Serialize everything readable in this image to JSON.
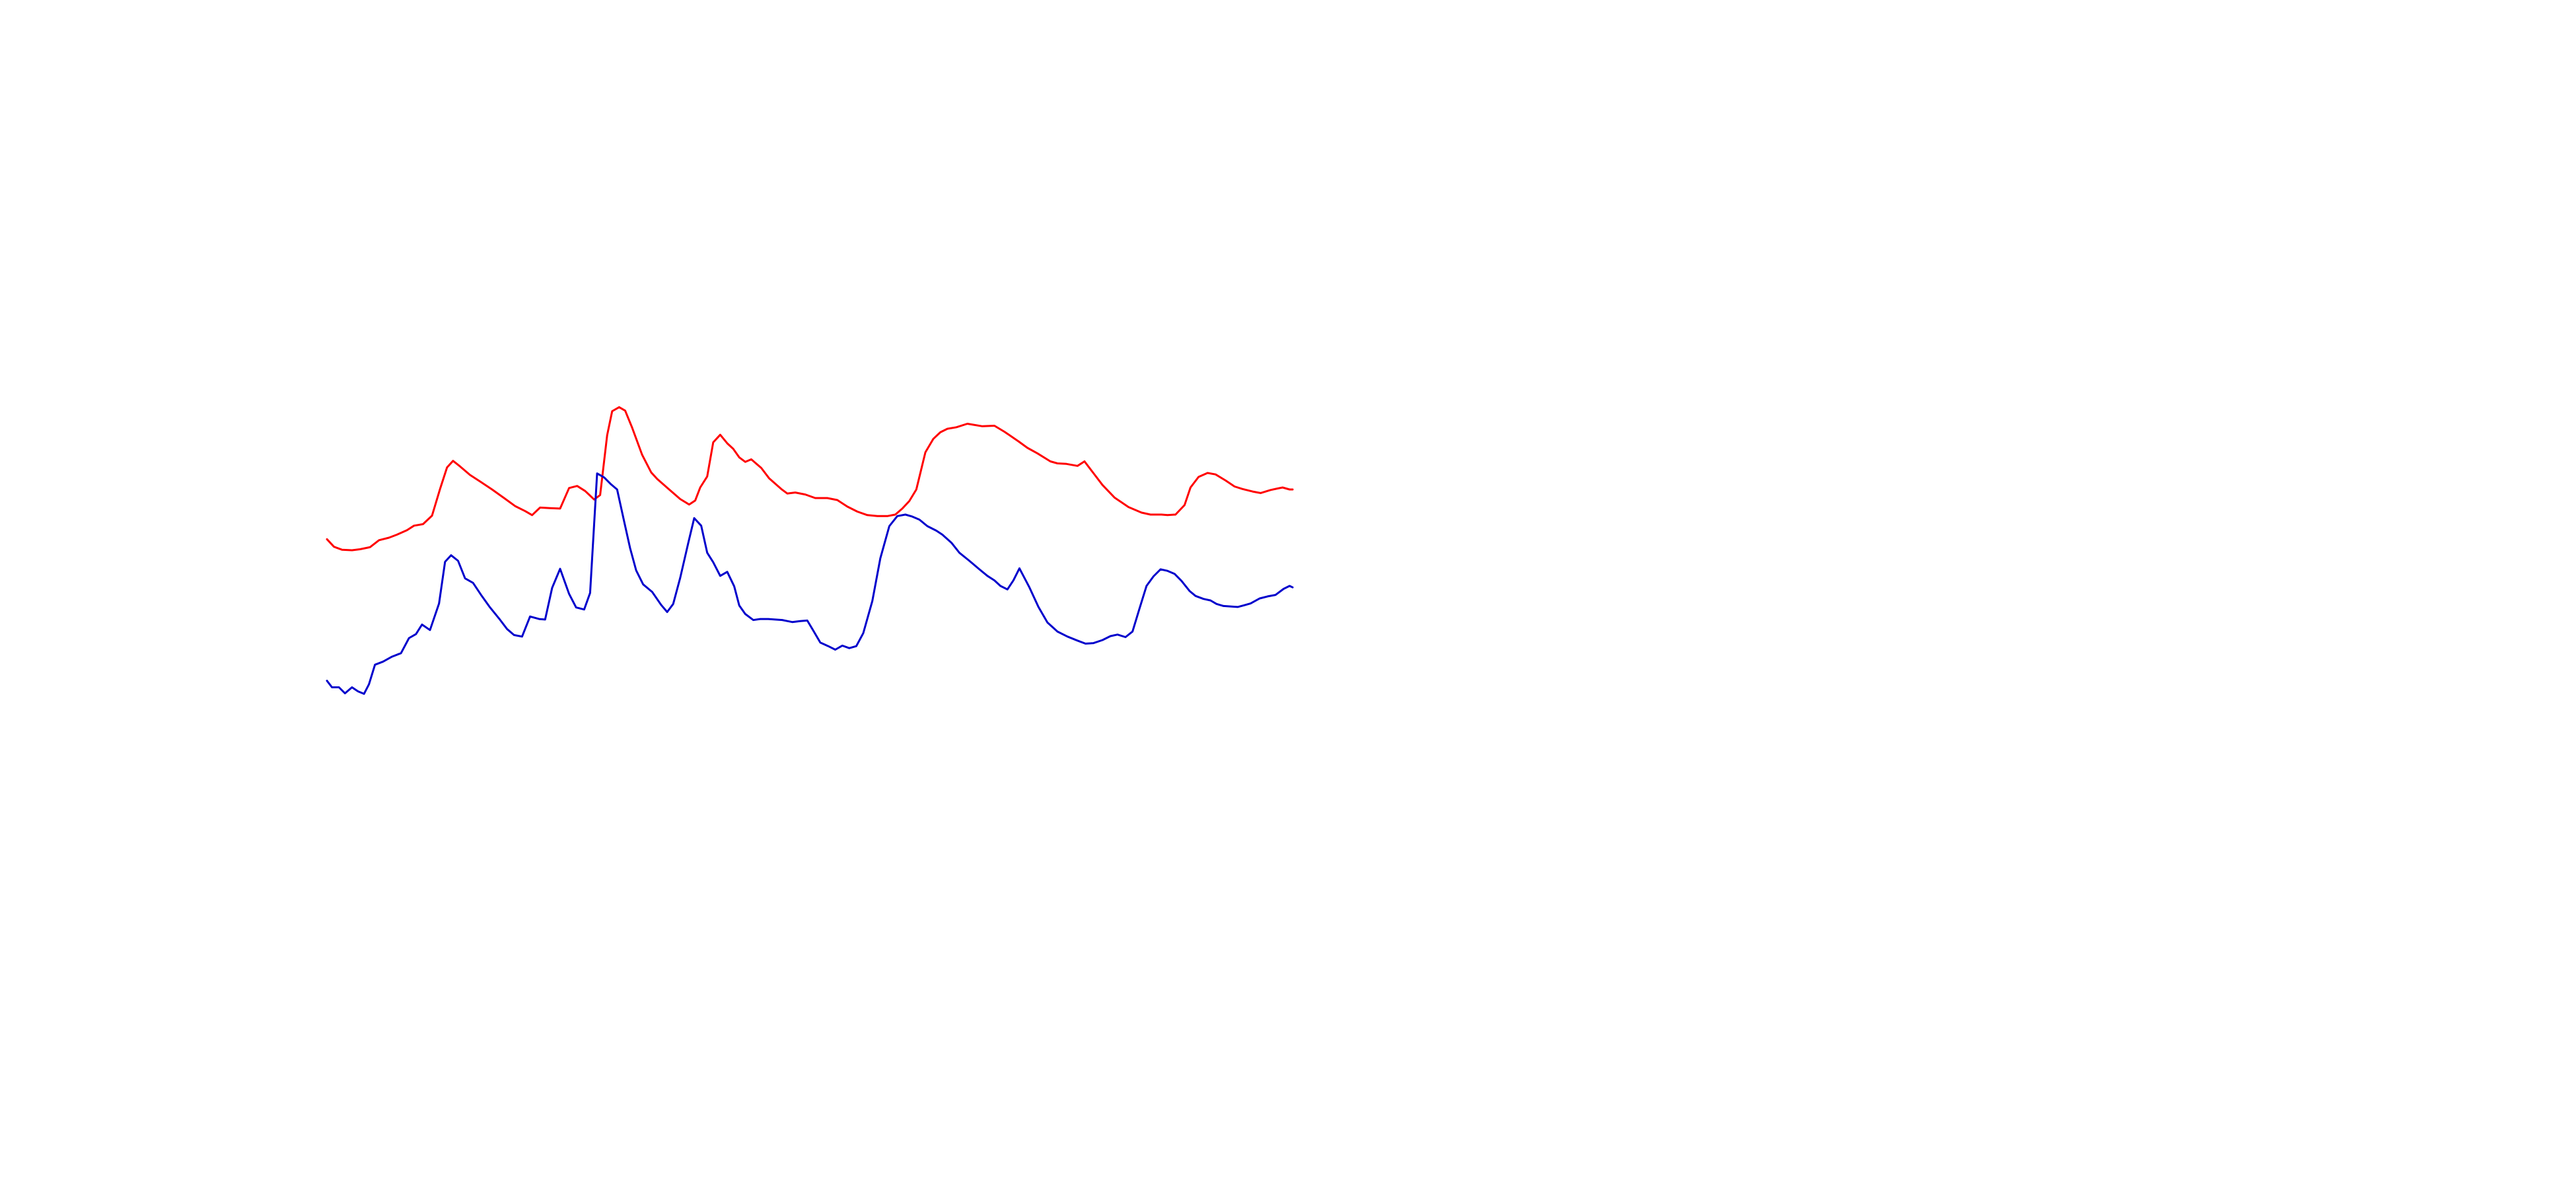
{
  "chart_data": {
    "type": "line",
    "title": "",
    "xlabel": "",
    "ylabel": "",
    "axes_visible": false,
    "grid": false,
    "legend": "none",
    "xlim": [
      0,
      100
    ],
    "ylim": [
      0,
      100
    ],
    "series": [
      {
        "color": "#ff0000",
        "points": [
          [
            0.0,
            59.7
          ],
          [
            0.7,
            58.2
          ],
          [
            1.5,
            57.6
          ],
          [
            2.5,
            57.5
          ],
          [
            3.3,
            57.7
          ],
          [
            4.3,
            58.1
          ],
          [
            5.2,
            59.5
          ],
          [
            6.2,
            60.0
          ],
          [
            7.0,
            60.6
          ],
          [
            8.0,
            61.5
          ],
          [
            8.7,
            62.4
          ],
          [
            9.6,
            62.7
          ],
          [
            10.5,
            64.4
          ],
          [
            11.3,
            69.7
          ],
          [
            12.0,
            74.0
          ],
          [
            12.6,
            75.3
          ],
          [
            13.3,
            74.2
          ],
          [
            14.3,
            72.5
          ],
          [
            15.3,
            71.2
          ],
          [
            16.5,
            69.6
          ],
          [
            17.7,
            67.9
          ],
          [
            18.8,
            66.3
          ],
          [
            19.8,
            65.3
          ],
          [
            20.5,
            64.5
          ],
          [
            21.3,
            66.0
          ],
          [
            22.3,
            65.9
          ],
          [
            23.3,
            65.8
          ],
          [
            24.2,
            69.9
          ],
          [
            25.0,
            70.3
          ],
          [
            25.8,
            69.3
          ],
          [
            26.7,
            67.6
          ],
          [
            27.3,
            68.5
          ],
          [
            28.0,
            80.4
          ],
          [
            28.5,
            85.2
          ],
          [
            29.2,
            86.0
          ],
          [
            29.8,
            85.3
          ],
          [
            30.5,
            81.9
          ],
          [
            31.5,
            76.5
          ],
          [
            32.4,
            73.0
          ],
          [
            33.0,
            71.7
          ],
          [
            34.2,
            69.6
          ],
          [
            35.3,
            67.7
          ],
          [
            36.2,
            66.6
          ],
          [
            36.8,
            67.4
          ],
          [
            37.3,
            70.0
          ],
          [
            38.0,
            72.2
          ],
          [
            38.6,
            79.0
          ],
          [
            39.3,
            80.5
          ],
          [
            40.0,
            78.8
          ],
          [
            40.6,
            77.7
          ],
          [
            41.2,
            76.0
          ],
          [
            41.8,
            75.1
          ],
          [
            42.4,
            75.6
          ],
          [
            43.4,
            73.9
          ],
          [
            44.2,
            71.8
          ],
          [
            45.4,
            69.7
          ],
          [
            46.0,
            68.8
          ],
          [
            46.8,
            69.0
          ],
          [
            47.8,
            68.6
          ],
          [
            48.8,
            67.9
          ],
          [
            50.0,
            67.9
          ],
          [
            51.0,
            67.5
          ],
          [
            52.0,
            66.2
          ],
          [
            53.0,
            65.2
          ],
          [
            54.0,
            64.5
          ],
          [
            55.0,
            64.3
          ],
          [
            56.0,
            64.3
          ],
          [
            56.8,
            64.6
          ],
          [
            57.5,
            65.8
          ],
          [
            58.2,
            67.3
          ],
          [
            58.9,
            69.6
          ],
          [
            59.8,
            77.0
          ],
          [
            60.6,
            79.7
          ],
          [
            61.3,
            81.0
          ],
          [
            62.0,
            81.7
          ],
          [
            62.9,
            82.0
          ],
          [
            64.0,
            82.7
          ],
          [
            65.5,
            82.2
          ],
          [
            66.7,
            82.3
          ],
          [
            67.7,
            81.1
          ],
          [
            69.1,
            79.2
          ],
          [
            70.0,
            77.9
          ],
          [
            71.0,
            76.8
          ],
          [
            72.3,
            75.2
          ],
          [
            73.0,
            74.8
          ],
          [
            73.9,
            74.7
          ],
          [
            75.0,
            74.3
          ],
          [
            75.7,
            75.2
          ],
          [
            76.5,
            73.1
          ],
          [
            77.5,
            70.5
          ],
          [
            78.7,
            68.0
          ],
          [
            80.1,
            66.1
          ],
          [
            81.4,
            65.0
          ],
          [
            82.3,
            64.6
          ],
          [
            83.4,
            64.6
          ],
          [
            84.0,
            64.5
          ],
          [
            84.8,
            64.6
          ],
          [
            85.7,
            66.5
          ],
          [
            86.3,
            70.0
          ],
          [
            87.1,
            72.1
          ],
          [
            88.0,
            72.9
          ],
          [
            88.8,
            72.6
          ],
          [
            89.8,
            71.4
          ],
          [
            90.7,
            70.2
          ],
          [
            91.5,
            69.7
          ],
          [
            92.5,
            69.2
          ],
          [
            93.3,
            68.9
          ],
          [
            94.3,
            69.5
          ],
          [
            95.0,
            69.8
          ],
          [
            95.5,
            70.0
          ],
          [
            96.2,
            69.6
          ],
          [
            96.5,
            69.6
          ]
        ]
      },
      {
        "color": "#0000cc",
        "points": [
          [
            0.0,
            31.5
          ],
          [
            0.5,
            30.2
          ],
          [
            1.2,
            30.2
          ],
          [
            1.8,
            29.0
          ],
          [
            2.5,
            30.2
          ],
          [
            3.1,
            29.4
          ],
          [
            3.7,
            28.9
          ],
          [
            4.2,
            30.8
          ],
          [
            4.8,
            34.7
          ],
          [
            5.6,
            35.3
          ],
          [
            6.5,
            36.3
          ],
          [
            7.4,
            37.0
          ],
          [
            8.2,
            40.0
          ],
          [
            8.9,
            40.8
          ],
          [
            9.5,
            42.7
          ],
          [
            10.3,
            41.6
          ],
          [
            11.2,
            46.9
          ],
          [
            11.8,
            55.2
          ],
          [
            12.4,
            56.5
          ],
          [
            13.1,
            55.4
          ],
          [
            13.8,
            51.9
          ],
          [
            14.6,
            51.0
          ],
          [
            15.4,
            48.6
          ],
          [
            16.3,
            46.1
          ],
          [
            17.2,
            43.9
          ],
          [
            18.0,
            41.8
          ],
          [
            18.7,
            40.6
          ],
          [
            19.5,
            40.3
          ],
          [
            20.3,
            44.3
          ],
          [
            21.2,
            43.8
          ],
          [
            21.8,
            43.7
          ],
          [
            22.5,
            50.0
          ],
          [
            23.3,
            53.8
          ],
          [
            24.2,
            48.8
          ],
          [
            24.9,
            46.1
          ],
          [
            25.7,
            45.7
          ],
          [
            26.3,
            49.0
          ],
          [
            27.0,
            72.8
          ],
          [
            27.7,
            72.0
          ],
          [
            28.4,
            70.6
          ],
          [
            29.0,
            69.6
          ],
          [
            29.7,
            63.2
          ],
          [
            30.3,
            57.9
          ],
          [
            30.9,
            53.5
          ],
          [
            31.6,
            50.7
          ],
          [
            32.5,
            49.2
          ],
          [
            33.4,
            46.6
          ],
          [
            34.0,
            45.2
          ],
          [
            34.6,
            46.8
          ],
          [
            35.3,
            52.0
          ],
          [
            36.1,
            58.9
          ],
          [
            36.7,
            63.9
          ],
          [
            37.4,
            62.4
          ],
          [
            38.0,
            57.0
          ],
          [
            38.6,
            55.1
          ],
          [
            39.3,
            52.4
          ],
          [
            40.0,
            53.2
          ],
          [
            40.7,
            50.3
          ],
          [
            41.2,
            46.5
          ],
          [
            41.8,
            44.8
          ],
          [
            42.6,
            43.6
          ],
          [
            43.3,
            43.8
          ],
          [
            44.1,
            43.8
          ],
          [
            44.8,
            43.7
          ],
          [
            45.5,
            43.6
          ],
          [
            46.0,
            43.4
          ],
          [
            46.5,
            43.2
          ],
          [
            47.3,
            43.4
          ],
          [
            48.0,
            43.5
          ],
          [
            48.6,
            41.5
          ],
          [
            49.3,
            39.1
          ],
          [
            50.1,
            38.4
          ],
          [
            50.8,
            37.7
          ],
          [
            51.5,
            38.5
          ],
          [
            52.2,
            38.0
          ],
          [
            52.9,
            38.4
          ],
          [
            53.6,
            41.0
          ],
          [
            54.5,
            47.4
          ],
          [
            55.3,
            55.9
          ],
          [
            56.2,
            62.3
          ],
          [
            57.0,
            64.3
          ],
          [
            57.8,
            64.6
          ],
          [
            58.5,
            64.2
          ],
          [
            59.2,
            63.6
          ],
          [
            60.0,
            62.3
          ],
          [
            60.9,
            61.4
          ],
          [
            61.5,
            60.6
          ],
          [
            62.4,
            59.0
          ],
          [
            63.2,
            57.0
          ],
          [
            64.2,
            55.4
          ],
          [
            65.2,
            53.7
          ],
          [
            66.0,
            52.4
          ],
          [
            66.7,
            51.5
          ],
          [
            67.3,
            50.4
          ],
          [
            68.0,
            49.7
          ],
          [
            68.6,
            51.5
          ],
          [
            69.2,
            53.9
          ],
          [
            70.2,
            50.1
          ],
          [
            71.1,
            46.2
          ],
          [
            72.0,
            43.1
          ],
          [
            73.0,
            41.3
          ],
          [
            74.0,
            40.3
          ],
          [
            75.0,
            39.5
          ],
          [
            75.8,
            38.9
          ],
          [
            76.6,
            39.0
          ],
          [
            77.5,
            39.6
          ],
          [
            78.3,
            40.4
          ],
          [
            79.0,
            40.7
          ],
          [
            79.8,
            40.2
          ],
          [
            80.5,
            41.3
          ],
          [
            81.2,
            45.9
          ],
          [
            81.9,
            50.4
          ],
          [
            82.6,
            52.3
          ],
          [
            83.3,
            53.7
          ],
          [
            84.0,
            53.4
          ],
          [
            84.7,
            52.8
          ],
          [
            85.4,
            51.4
          ],
          [
            86.2,
            49.4
          ],
          [
            86.8,
            48.4
          ],
          [
            87.6,
            47.8
          ],
          [
            88.3,
            47.5
          ],
          [
            88.9,
            46.8
          ],
          [
            89.6,
            46.4
          ],
          [
            90.3,
            46.3
          ],
          [
            91.0,
            46.2
          ],
          [
            91.6,
            46.5
          ],
          [
            92.3,
            46.9
          ],
          [
            93.2,
            47.9
          ],
          [
            94.0,
            48.3
          ],
          [
            94.8,
            48.6
          ],
          [
            95.6,
            49.8
          ],
          [
            96.2,
            50.4
          ],
          [
            96.5,
            50.1
          ]
        ]
      }
    ]
  }
}
